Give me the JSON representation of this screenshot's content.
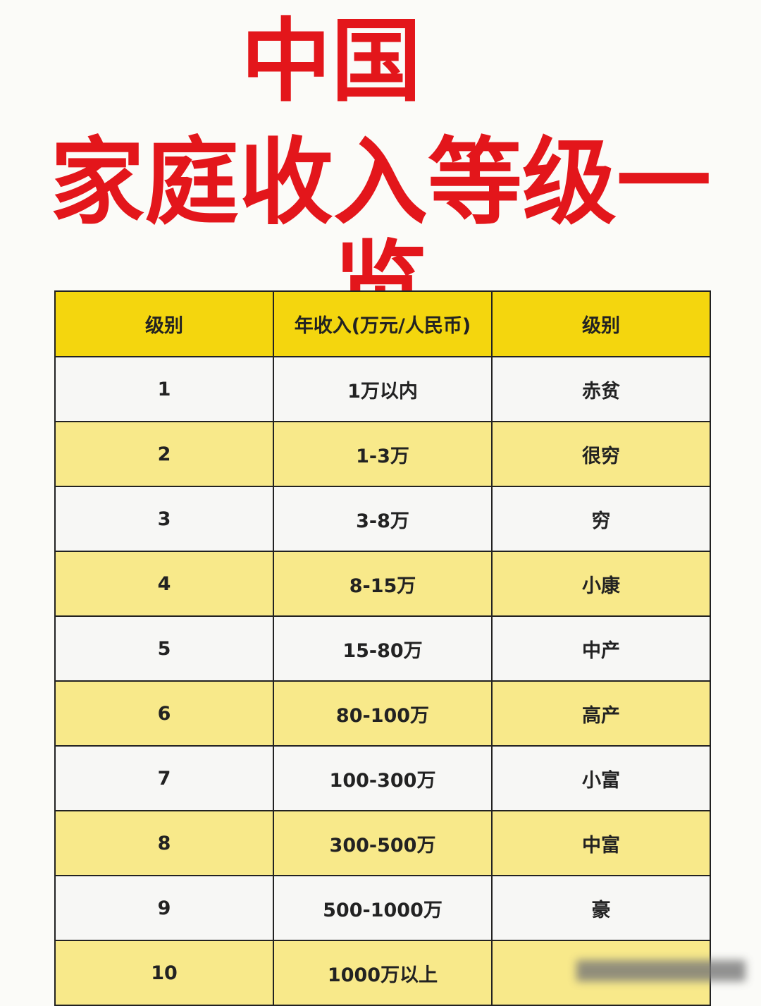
{
  "title": {
    "line1": "中国",
    "line2": "家庭收入等级一览"
  },
  "table": {
    "headers": [
      "级别",
      "年收入(万元/人民币)",
      "级别"
    ],
    "rows": [
      [
        "1",
        "1万以内",
        "赤贫"
      ],
      [
        "2",
        "1-3万",
        "很穷"
      ],
      [
        "3",
        "3-8万",
        "穷"
      ],
      [
        "4",
        "8-15万",
        "小康"
      ],
      [
        "5",
        "15-80万",
        "中产"
      ],
      [
        "6",
        "80-100万",
        "高产"
      ],
      [
        "7",
        "100-300万",
        "小富"
      ],
      [
        "8",
        "300-500万",
        "中富"
      ],
      [
        "9",
        "500-1000万",
        "豪"
      ],
      [
        "10",
        "1000万以上",
        ""
      ]
    ]
  },
  "colors": {
    "title": "#e3161b",
    "header": "#f4d60e",
    "stripe": "#f8e98a"
  }
}
